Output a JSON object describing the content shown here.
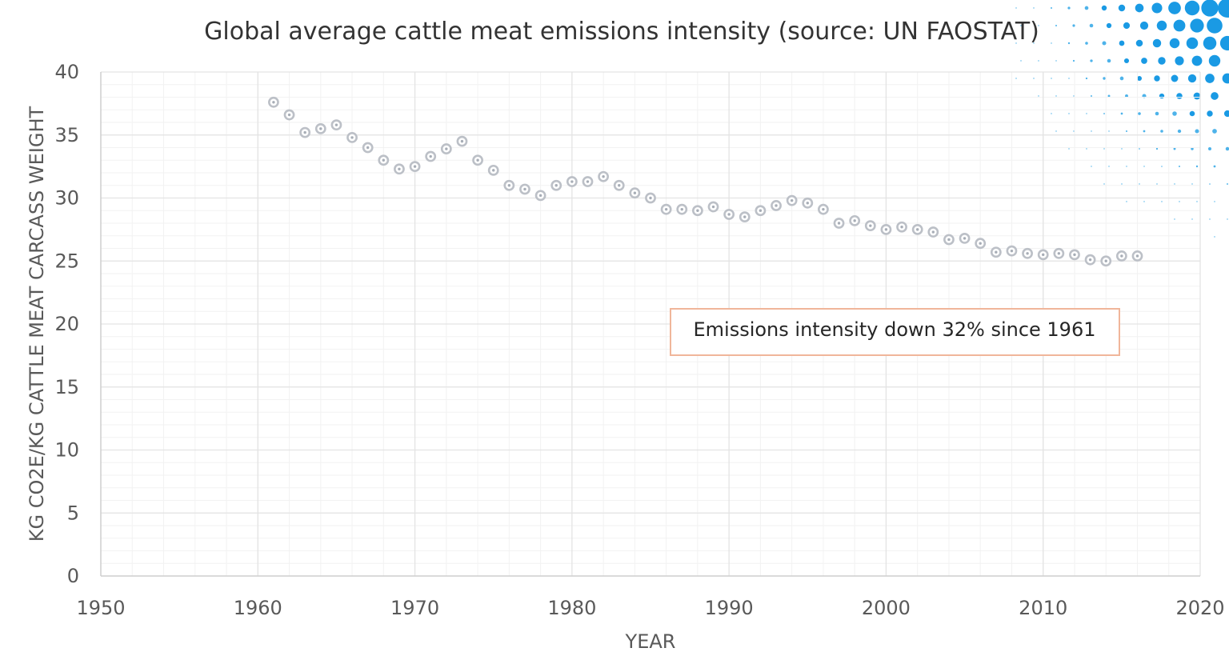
{
  "chart_data": {
    "type": "scatter",
    "title": "Global average cattle meat emissions intensity (source: UN FAOSTAT)",
    "xlabel": "YEAR",
    "ylabel": "KG CO2E/KG CATTLE MEAT CARCASS WEIGHT",
    "xlim": [
      1950,
      2020
    ],
    "ylim": [
      0,
      40
    ],
    "x_ticks": [
      "1950",
      "1960",
      "1970",
      "1980",
      "1990",
      "2000",
      "2010",
      "2020"
    ],
    "y_ticks": [
      "0",
      "5",
      "10",
      "15",
      "20",
      "25",
      "30",
      "35",
      "40"
    ],
    "grid": true,
    "annotation": "Emissions intensity down 32% since 1961",
    "series": [
      {
        "x": [
          1961,
          1962,
          1963,
          1964,
          1965,
          1966,
          1967,
          1968,
          1969,
          1970,
          1971,
          1972,
          1973,
          1974,
          1975,
          1976,
          1977,
          1978,
          1979,
          1980,
          1981,
          1982,
          1983,
          1984,
          1985,
          1986,
          1987,
          1988,
          1989,
          1990,
          1991,
          1992,
          1993,
          1994,
          1995,
          1996,
          1997,
          1998,
          1999,
          2000,
          2001,
          2002,
          2003,
          2004,
          2005,
          2006,
          2007,
          2008,
          2009,
          2010,
          2011,
          2012,
          2013,
          2014,
          2015,
          2016
        ],
        "y": [
          37.6,
          36.6,
          35.2,
          35.5,
          35.8,
          34.8,
          34.0,
          33.0,
          32.3,
          32.5,
          33.3,
          33.9,
          34.5,
          33.0,
          32.2,
          31.0,
          30.7,
          30.2,
          31.0,
          31.3,
          31.3,
          31.7,
          31.0,
          30.4,
          30.0,
          29.1,
          29.1,
          29.0,
          29.3,
          28.7,
          28.5,
          29.0,
          29.4,
          29.8,
          29.6,
          29.1,
          28.0,
          28.2,
          27.8,
          27.5,
          27.7,
          27.5,
          27.3,
          26.7,
          26.8,
          26.4,
          25.7,
          25.8,
          25.6,
          25.5,
          25.6,
          25.5,
          25.1,
          25.0,
          25.4,
          25.4
        ]
      }
    ]
  }
}
